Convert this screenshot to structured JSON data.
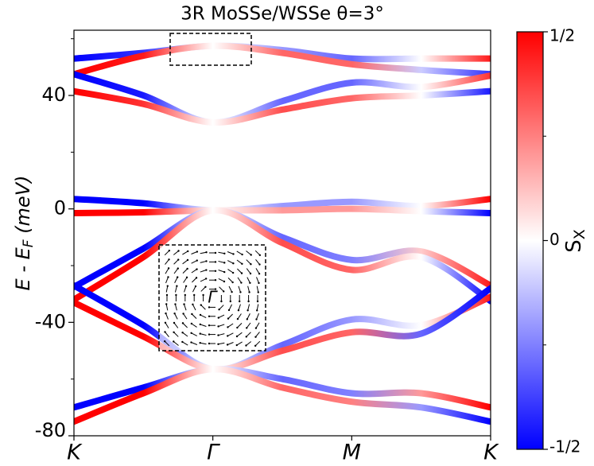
{
  "chart_data": {
    "type": "line",
    "title": "3R MoSSe/WSSe θ=3°",
    "ylabel": {
      "main": "E - E",
      "sub": "F",
      "unit": " (meV)"
    },
    "x": [
      0,
      0.5,
      1,
      1.5,
      2,
      2.5,
      3
    ],
    "xlim": [
      0,
      3
    ],
    "xticks": [
      {
        "value": 0,
        "label": "K"
      },
      {
        "value": 1,
        "label": "Γ"
      },
      {
        "value": 2,
        "label": "M"
      },
      {
        "value": 3,
        "label": "K"
      }
    ],
    "ylim": [
      -80,
      63
    ],
    "yticks": [
      -80,
      -40,
      0,
      40
    ],
    "yminor": [
      -60,
      -20,
      20,
      60
    ],
    "series": [
      {
        "values": [
          53,
          55,
          57.5,
          56,
          53,
          53,
          53
        ],
        "sx": [
          -0.5,
          -0.4,
          0,
          -0.2,
          -0.3,
          0,
          0.45
        ]
      },
      {
        "values": [
          47.5,
          54,
          57.5,
          55,
          51,
          49,
          47.5
        ],
        "sx": [
          0.5,
          0.45,
          0,
          0.3,
          0.3,
          -0.1,
          -0.4
        ]
      },
      {
        "values": [
          47.5,
          40,
          30.5,
          38,
          44.5,
          43,
          47
        ],
        "sx": [
          -0.5,
          -0.45,
          0,
          -0.3,
          -0.3,
          0,
          0.4
        ]
      },
      {
        "values": [
          41.5,
          37,
          30.5,
          35,
          39,
          40,
          41.5
        ],
        "sx": [
          0.5,
          0.4,
          0,
          0.35,
          0.3,
          0,
          -0.45
        ]
      },
      {
        "values": [
          3.5,
          2,
          -0.5,
          1,
          2.5,
          1,
          3.5
        ],
        "sx": [
          -0.5,
          -0.5,
          0,
          -0.2,
          -0.2,
          0,
          0.5
        ]
      },
      {
        "values": [
          -1.5,
          -1.2,
          -0.5,
          -0.5,
          0,
          -0.8,
          -1.5
        ],
        "sx": [
          0.5,
          0.5,
          0,
          0.2,
          0.2,
          0,
          -0.5
        ]
      },
      {
        "values": [
          -27.5,
          -14,
          -0.5,
          -10,
          -18,
          -15,
          -27
        ],
        "sx": [
          -0.5,
          -0.5,
          0,
          -0.3,
          -0.25,
          0.1,
          0.45
        ]
      },
      {
        "values": [
          -32,
          -17,
          -0.5,
          -12,
          -21.5,
          -17,
          -32.5
        ],
        "sx": [
          0.5,
          0.5,
          0,
          0.35,
          0.3,
          0,
          -0.5
        ]
      },
      {
        "values": [
          -27,
          -41,
          -56.5,
          -48,
          -39,
          -41,
          -31
        ],
        "sx": [
          -0.5,
          -0.5,
          0,
          -0.3,
          -0.2,
          0,
          0.45
        ]
      },
      {
        "values": [
          -33,
          -45,
          -56.5,
          -50,
          -43.5,
          -44,
          -28
        ],
        "sx": [
          0.5,
          0.5,
          0,
          0.35,
          0.3,
          -0.3,
          -0.5
        ]
      },
      {
        "values": [
          -70,
          -63,
          -56.5,
          -60,
          -65,
          -65,
          -70
        ],
        "sx": [
          -0.5,
          -0.5,
          0,
          -0.3,
          -0.25,
          0.2,
          0.5
        ]
      },
      {
        "values": [
          -75,
          -65,
          -56.5,
          -63,
          -68,
          -70,
          -75
        ],
        "sx": [
          0.5,
          0.5,
          0,
          0.3,
          0.25,
          -0.2,
          -0.5
        ]
      }
    ],
    "inset_label": "Γ",
    "colorbar": {
      "label": {
        "main": "S",
        "sub": "X"
      },
      "lim": [
        -0.5,
        0.5
      ],
      "ticks": [
        {
          "value": 0.5,
          "label": "1/2"
        },
        0,
        {
          "value": -0.5,
          "label": "-1/2"
        }
      ],
      "minor": [
        -0.25,
        0.25
      ]
    }
  }
}
